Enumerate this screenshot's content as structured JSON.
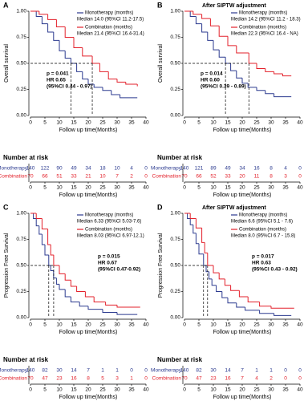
{
  "chart_data": [
    {
      "type": "step",
      "panel": "A",
      "ylabel": "Overall survival",
      "xlabel": "Follow up time(Months)",
      "xlim": [
        0,
        40
      ],
      "xticks": [
        0,
        5,
        10,
        15,
        20,
        25,
        30,
        35,
        40
      ],
      "ylim": [
        0,
        1
      ],
      "yticks": [
        {
          "value": 0,
          "label": "0.00"
        },
        {
          "value": 0.25,
          "label": "0.25"
        },
        {
          "value": 0.5,
          "label": "0.50"
        },
        {
          "value": 0.75,
          "label": "0.75"
        },
        {
          "value": 1,
          "label": "1.00"
        }
      ],
      "series": [
        {
          "name": "Monotherapy (months)",
          "median_label": "Median 14.0 (95%CI 11.2-17.5)",
          "color": "#2b3a8f",
          "x": [
            0,
            2,
            4,
            6,
            8,
            10,
            12,
            14,
            16,
            18,
            20,
            22,
            25,
            28,
            31,
            37
          ],
          "values": [
            1,
            0.95,
            0.88,
            0.8,
            0.72,
            0.62,
            0.55,
            0.5,
            0.42,
            0.35,
            0.3,
            0.27,
            0.24,
            0.2,
            0.17,
            0.17
          ]
        },
        {
          "name": "Combination (months)",
          "median_label": "Median 21.4 (95%CI 16.4-31.4)",
          "color": "#e3212b",
          "x": [
            0,
            3,
            6,
            9,
            12,
            15,
            18,
            21.4,
            24,
            27,
            30,
            33,
            37
          ],
          "values": [
            1,
            0.97,
            0.92,
            0.85,
            0.75,
            0.65,
            0.57,
            0.5,
            0.42,
            0.35,
            0.32,
            0.3,
            0.28
          ]
        }
      ],
      "reference": {
        "y": 0.5,
        "x": [
          14,
          21.4
        ]
      },
      "stats": [
        "p = 0.041",
        "HR 0.65",
        "(95%CI 0.44 - 0.97)"
      ],
      "risk_table": {
        "title": "Number at risk",
        "rows": [
          {
            "name": "Monotherapy",
            "color": "#2b3a8f",
            "values": [
              140,
              122,
              90,
              49,
              34,
              18,
              10,
              4,
              0
            ]
          },
          {
            "name": "Combination",
            "color": "#e3212b",
            "values": [
              70,
              66,
              51,
              33,
              21,
              10,
              7,
              2,
              0
            ]
          }
        ]
      }
    },
    {
      "type": "step",
      "panel": "B",
      "subtitle": "After SIPTW adjustment",
      "ylabel": "Overall survival",
      "xlabel": "Follow up time(Months)",
      "xlim": [
        0,
        40
      ],
      "xticks": [
        0,
        5,
        10,
        15,
        20,
        25,
        30,
        35,
        40
      ],
      "ylim": [
        0,
        1
      ],
      "yticks": [
        {
          "value": 0,
          "label": "0.00"
        },
        {
          "value": 0.25,
          "label": "0.25"
        },
        {
          "value": 0.5,
          "label": "0.50"
        },
        {
          "value": 0.75,
          "label": "0.75"
        },
        {
          "value": 1,
          "label": "1.00"
        }
      ],
      "series": [
        {
          "name": "Monotherapy (months)",
          "median_label": "Median 14.2 (95%CI 11.2 - 18.3)",
          "color": "#2b3a8f",
          "x": [
            0,
            2,
            4,
            6,
            8,
            10,
            12,
            14.2,
            16,
            18,
            20,
            22,
            25,
            28,
            31,
            37
          ],
          "values": [
            1,
            0.95,
            0.88,
            0.8,
            0.72,
            0.63,
            0.56,
            0.5,
            0.43,
            0.36,
            0.31,
            0.27,
            0.24,
            0.21,
            0.18,
            0.18
          ]
        },
        {
          "name": "Combination (months)",
          "median_label": "Median 22.3 (95%CI 16.4 - NA)",
          "color": "#e3212b",
          "x": [
            0,
            3,
            6,
            9,
            12,
            15,
            18,
            22.3,
            25,
            28,
            31,
            34,
            37
          ],
          "values": [
            1,
            0.97,
            0.93,
            0.86,
            0.76,
            0.67,
            0.6,
            0.5,
            0.45,
            0.42,
            0.4,
            0.38,
            0.38
          ]
        }
      ],
      "reference": {
        "y": 0.5,
        "x": [
          14.2,
          22.3
        ]
      },
      "stats": [
        "p = 0.014",
        "HR 0.60",
        "(95%CI 0.39 - 0.89)"
      ],
      "risk_table": {
        "title": "Number at risk",
        "rows": [
          {
            "name": "Monotherapy",
            "color": "#2b3a8f",
            "values": [
              140,
              121,
              89,
              49,
              34,
              16,
              8,
              4,
              0
            ]
          },
          {
            "name": "Combination",
            "color": "#e3212b",
            "values": [
              70,
              66,
              52,
              33,
              20,
              11,
              8,
              3,
              0
            ]
          }
        ]
      }
    },
    {
      "type": "step",
      "panel": "C",
      "ylabel": "Progression Free Survival",
      "xlabel": "Follow up time(Months)",
      "xlim": [
        0,
        40
      ],
      "xticks": [
        0,
        5,
        10,
        15,
        20,
        25,
        30,
        35,
        40
      ],
      "ylim": [
        0,
        1
      ],
      "yticks": [
        {
          "value": 0,
          "label": "0.00"
        },
        {
          "value": 0.25,
          "label": "0.25"
        },
        {
          "value": 0.5,
          "label": "0.50"
        },
        {
          "value": 0.75,
          "label": "0.75"
        },
        {
          "value": 1,
          "label": "1.00"
        }
      ],
      "series": [
        {
          "name": "Monotherapy (months)",
          "median_label": "Median 6.33 (95%CI 5.03-7.6)",
          "color": "#2b3a8f",
          "x": [
            0,
            1,
            2,
            3,
            4,
            5,
            6.33,
            7,
            8,
            9,
            10,
            12,
            14,
            17,
            20,
            25,
            30,
            37
          ],
          "values": [
            1,
            0.95,
            0.88,
            0.8,
            0.7,
            0.6,
            0.5,
            0.45,
            0.38,
            0.32,
            0.27,
            0.2,
            0.15,
            0.11,
            0.08,
            0.05,
            0.03,
            0.03
          ]
        },
        {
          "name": "Combination (months)",
          "median_label": "Median 8.03 (95%CI 6.97-12.1)",
          "color": "#e3212b",
          "x": [
            0,
            2,
            4,
            6,
            7,
            8.03,
            10,
            12,
            14,
            16,
            19,
            22,
            26,
            30,
            38
          ],
          "values": [
            1,
            0.95,
            0.85,
            0.7,
            0.6,
            0.5,
            0.42,
            0.36,
            0.3,
            0.25,
            0.2,
            0.15,
            0.12,
            0.1,
            0.1
          ]
        }
      ],
      "reference": {
        "y": 0.5,
        "x": [
          6.33,
          8.03
        ]
      },
      "stats": [
        "p = 0.015",
        "HR 0.67",
        "(95%CI 0.47-0.92)"
      ],
      "risk_table": {
        "title": "Number at risk",
        "rows": [
          {
            "name": "Monotherapy",
            "color": "#2b3a8f",
            "values": [
              140,
              82,
              30,
              14,
              7,
              1,
              1,
              0,
              0
            ]
          },
          {
            "name": "Combination",
            "color": "#e3212b",
            "values": [
              70,
              47,
              23,
              16,
              8,
              5,
              3,
              1,
              0
            ]
          }
        ]
      }
    },
    {
      "type": "step",
      "panel": "D",
      "subtitle": "After SIPTW adjustment",
      "ylabel": "Progression Free Survival",
      "xlabel": "Follow up time(Months)",
      "xlim": [
        0,
        40
      ],
      "xticks": [
        0,
        5,
        10,
        15,
        20,
        25,
        30,
        35,
        40
      ],
      "ylim": [
        0,
        1
      ],
      "yticks": [
        {
          "value": 0,
          "label": "0.00"
        },
        {
          "value": 0.25,
          "label": "0.25"
        },
        {
          "value": 0.5,
          "label": "0.50"
        },
        {
          "value": 0.75,
          "label": "0.75"
        },
        {
          "value": 1,
          "label": "1.00"
        }
      ],
      "series": [
        {
          "name": "Monotherapy (months)",
          "median_label": "Median 6.6 (95%CI 5.1 - 7.6)",
          "color": "#2b3a8f",
          "x": [
            0,
            1,
            2,
            3,
            4,
            5,
            6.6,
            7.5,
            8.5,
            9.5,
            11,
            13,
            15,
            18,
            21,
            26,
            31,
            37
          ],
          "values": [
            1,
            0.95,
            0.89,
            0.81,
            0.71,
            0.61,
            0.5,
            0.44,
            0.37,
            0.31,
            0.25,
            0.19,
            0.14,
            0.1,
            0.07,
            0.04,
            0.02,
            0.02
          ]
        },
        {
          "name": "Combination (months)",
          "median_label": "Median 8.0 (95%CI 6.7 - 15.8)",
          "color": "#e3212b",
          "x": [
            0,
            2,
            4,
            6,
            7,
            8,
            10,
            12,
            14,
            16,
            19,
            22,
            26,
            30,
            38
          ],
          "values": [
            1,
            0.95,
            0.86,
            0.72,
            0.62,
            0.5,
            0.43,
            0.37,
            0.31,
            0.26,
            0.2,
            0.15,
            0.11,
            0.09,
            0.09
          ]
        }
      ],
      "reference": {
        "y": 0.5,
        "x": [
          6.6,
          8
        ]
      },
      "stats": [
        "p = 0.017",
        "HR 0.63",
        "(95%CI 0.43 - 0.92)"
      ],
      "risk_table": {
        "title": "Number at risk",
        "rows": [
          {
            "name": "Monotherapy",
            "color": "#2b3a8f",
            "values": [
              140,
              82,
              30,
              14,
              7,
              1,
              1,
              0,
              0
            ]
          },
          {
            "name": "Combination",
            "color": "#e3212b",
            "values": [
              70,
              47,
              23,
              16,
              7,
              4,
              2,
              0,
              0
            ]
          }
        ]
      }
    }
  ]
}
